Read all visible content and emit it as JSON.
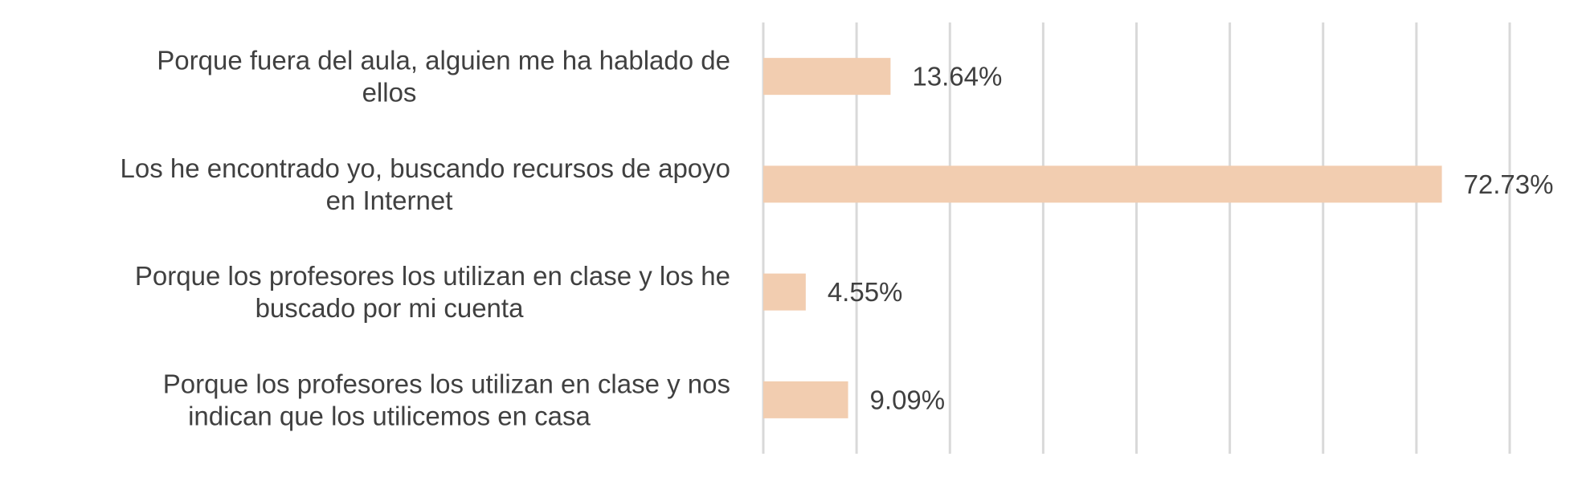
{
  "chart_data": {
    "type": "bar",
    "orientation": "horizontal",
    "categories": [
      "Porque fuera del aula, alguien me ha hablado de ellos",
      "Los he encontrado yo, buscando recursos de apoyo en Internet",
      "Porque los profesores los utilizan en clase y los he buscado por mi cuenta",
      "Porque los profesores los utilizan en clase y nos indican que los utilicemos en casa"
    ],
    "category_lines": [
      [
        "Porque fuera del aula, alguien me ha hablado de",
        "ellos"
      ],
      [
        "Los he encontrado yo, buscando recursos de apoyo",
        "en Internet"
      ],
      [
        "Porque los profesores los utilizan en clase y los he",
        "buscado por mi cuenta"
      ],
      [
        "Porque los profesores los utilizan en clase y nos",
        "indican que los utilicemos en casa"
      ]
    ],
    "values": [
      13.64,
      72.73,
      4.55,
      9.09
    ],
    "data_labels": [
      "13.64%",
      "72.73%",
      "4.55%",
      "9.09%"
    ],
    "xlim": [
      0,
      80
    ],
    "x_gridline_step": 10,
    "grid": true,
    "legend": "none",
    "bar_color": "#f2cdb0",
    "gridline_color": "#d9d9d9",
    "text_color": "#404040"
  }
}
